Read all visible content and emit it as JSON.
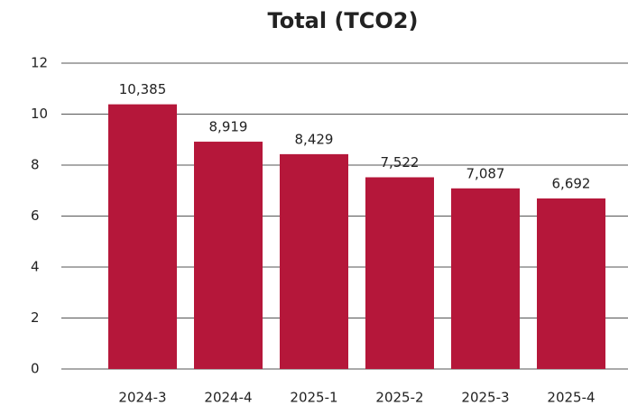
{
  "chart_data": {
    "type": "bar",
    "title": "Total (TCO2)",
    "categories": [
      "2024-3",
      "2024-4",
      "2025-1",
      "2025-2",
      "2025-3",
      "2025-4"
    ],
    "values": [
      10.385,
      8.919,
      8.429,
      7.522,
      7.087,
      6.692
    ],
    "value_labels": [
      "10,385",
      "8,919",
      "8,429",
      "7,522",
      "7,087",
      "6,692"
    ],
    "color": "#b5173a",
    "ylim": [
      0,
      12
    ],
    "yticks": [
      0,
      2,
      4,
      6,
      8,
      10,
      12
    ],
    "grid": true
  }
}
